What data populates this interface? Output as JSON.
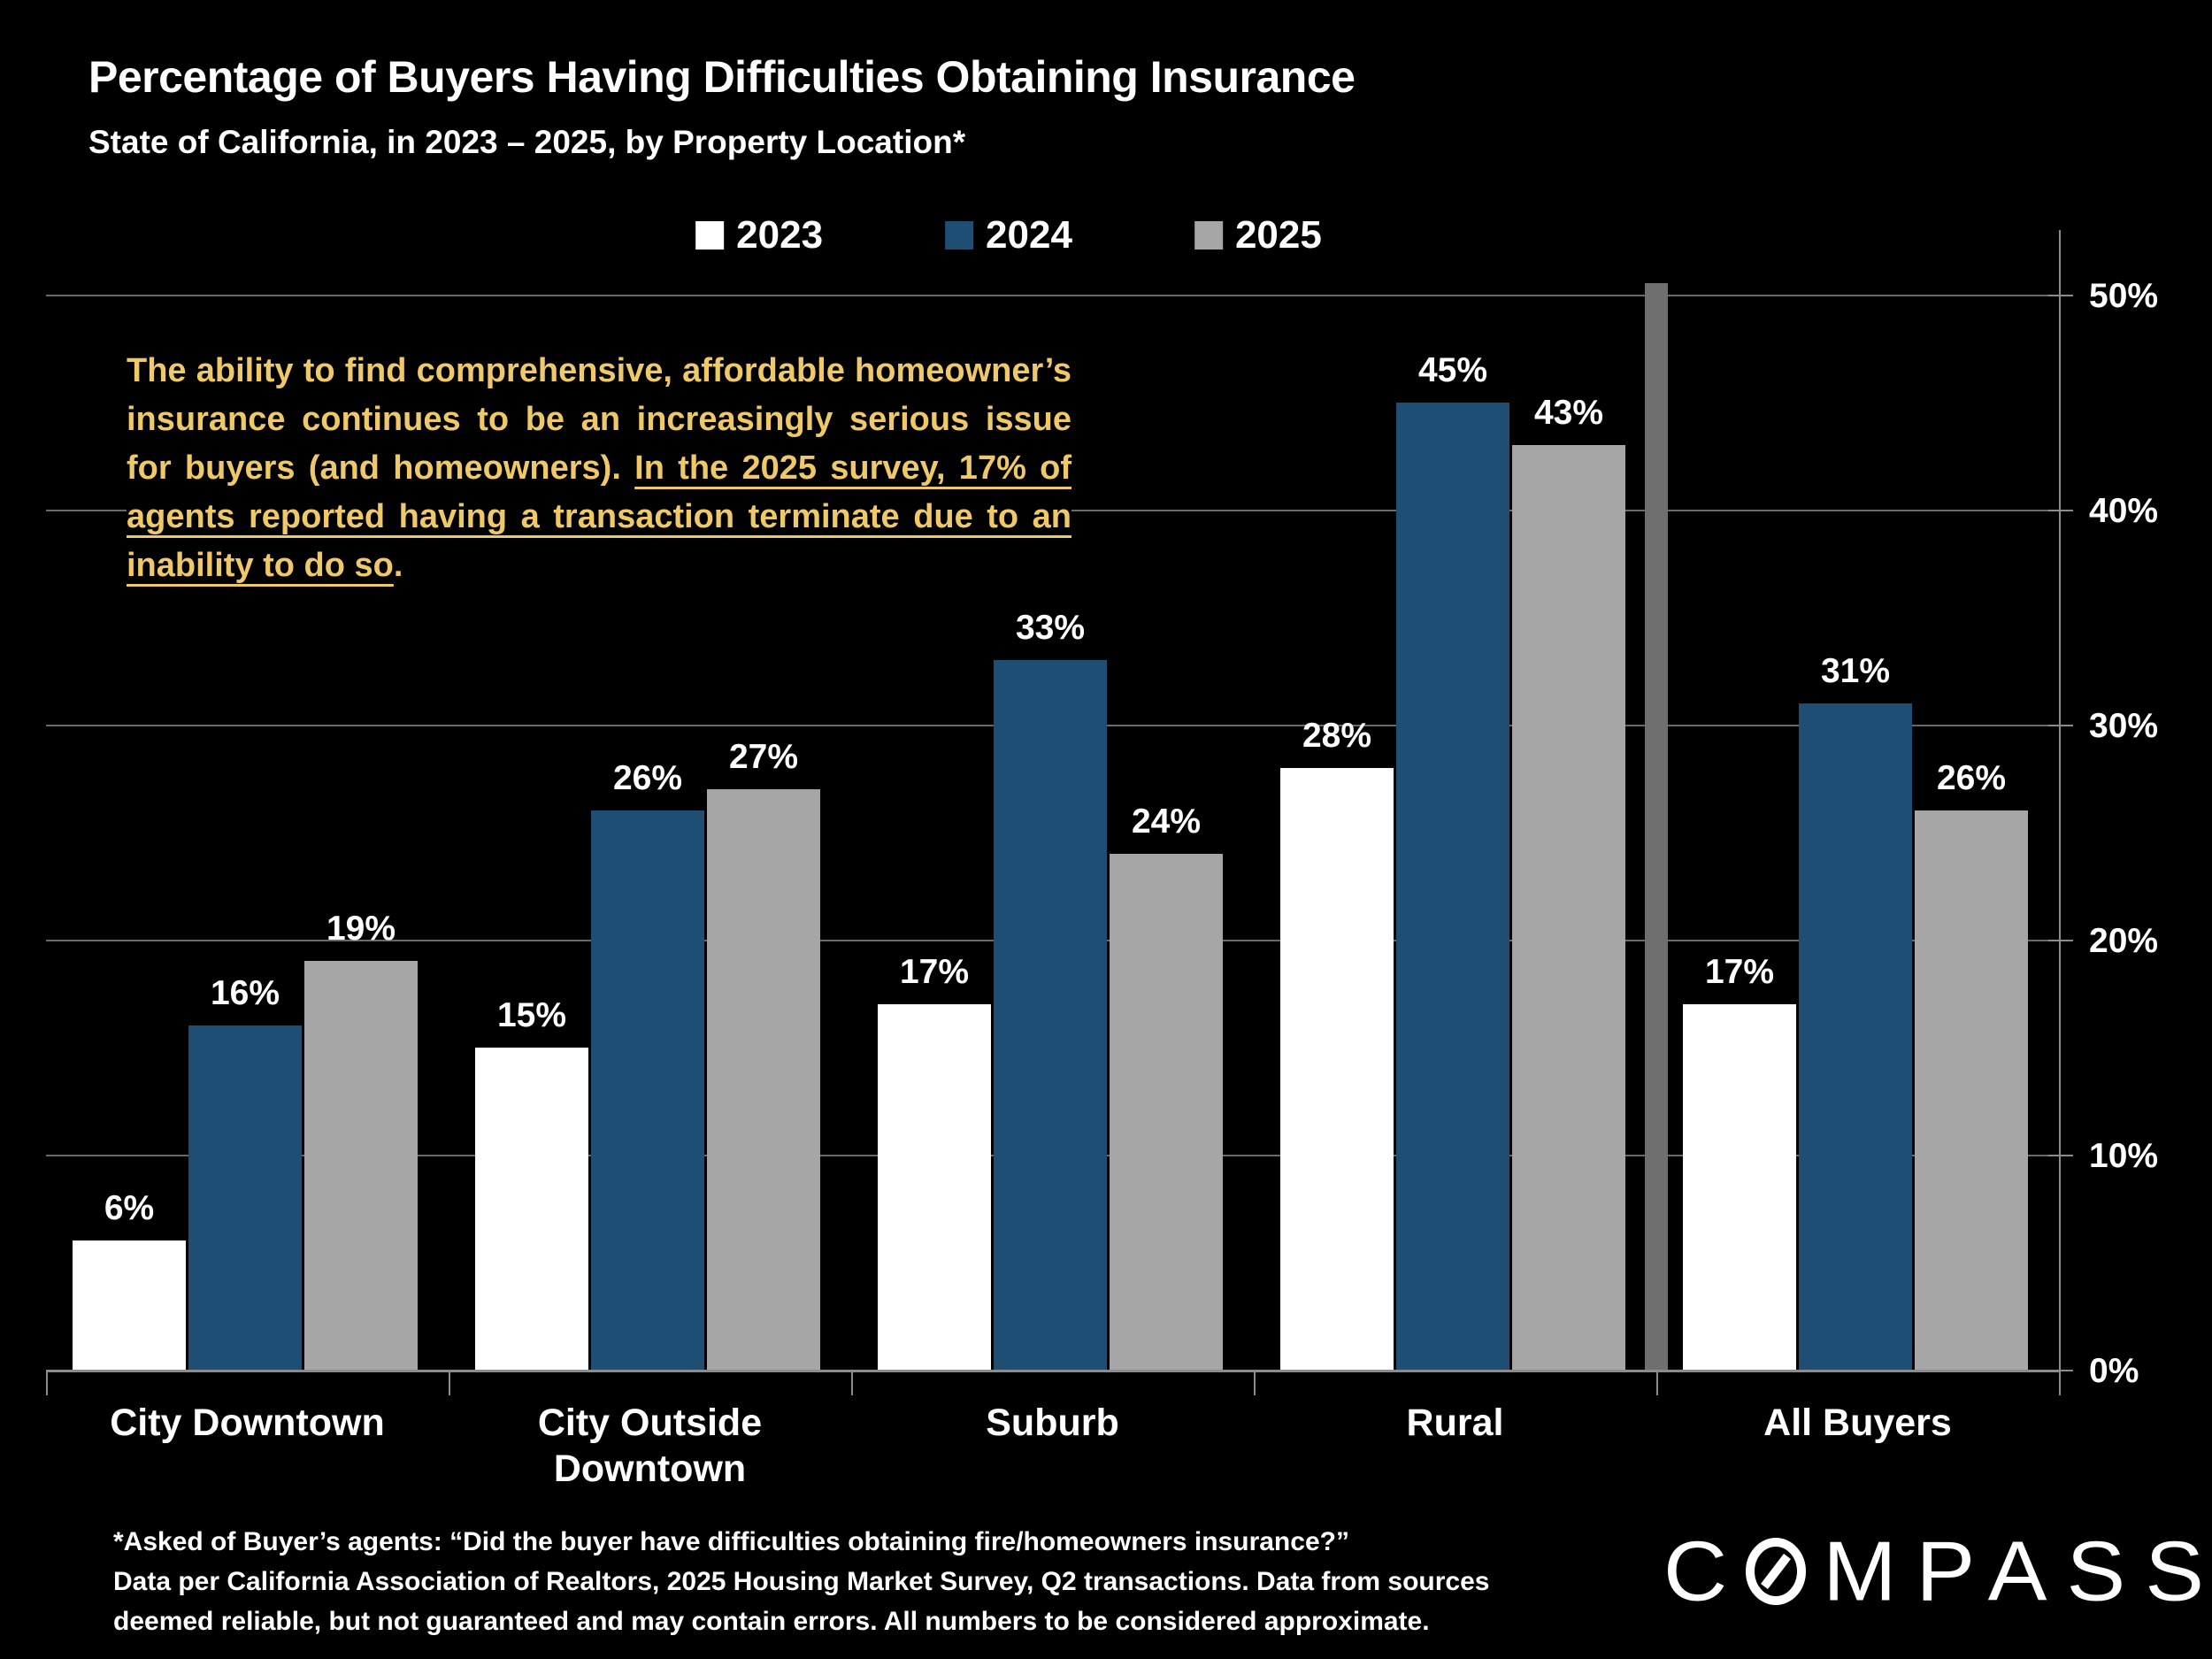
{
  "title": "Percentage of Buyers Having Difficulties Obtaining Insurance",
  "subtitle": "State of California, in 2023 – 2025, by Property Location*",
  "annotation": {
    "normal": "The ability to find comprehensive, affordable homeowner’s insurance continues to be an increasingly serious issue for buyers (and homeowners). ",
    "underlined": "In the 2025 survey, 17% of agents reported having a transaction terminate due to an inability to do so",
    "after": ".",
    "color": "#efc868"
  },
  "chart_data": {
    "type": "bar",
    "categories": [
      "City Downtown",
      "City Outside Downtown",
      "Suburb",
      "Rural",
      "All Buyers"
    ],
    "series": [
      {
        "name": "2023",
        "color": "#ffffff",
        "values": [
          6,
          15,
          17,
          28,
          17
        ]
      },
      {
        "name": "2024",
        "color": "#1f4e74",
        "values": [
          16,
          26,
          33,
          45,
          31
        ]
      },
      {
        "name": "2025",
        "color": "#a6a6a6",
        "values": [
          19,
          27,
          24,
          43,
          26
        ]
      }
    ],
    "data_label_format": "{v}%",
    "y_ticks": [
      "0%",
      "10%",
      "20%",
      "30%",
      "40%",
      "50%"
    ],
    "ylim": [
      0,
      50
    ],
    "grid": true,
    "y_axis_side": "right",
    "legend_position": "top",
    "separator_after_category_index": 3
  },
  "footer": {
    "footnote": "*Asked of Buyer’s agents:  “Did the buyer have difficulties obtaining fire/homeowners insurance?”",
    "source": "Data per California Association of Realtors, 2025 Housing Market Survey, Q2 transactions. Data from sources deemed reliable, but not guaranteed and may contain errors. All numbers to be considered approximate."
  },
  "logo": {
    "prefix": "C",
    "suffix": "MPASS",
    "name": "COMPASS"
  }
}
